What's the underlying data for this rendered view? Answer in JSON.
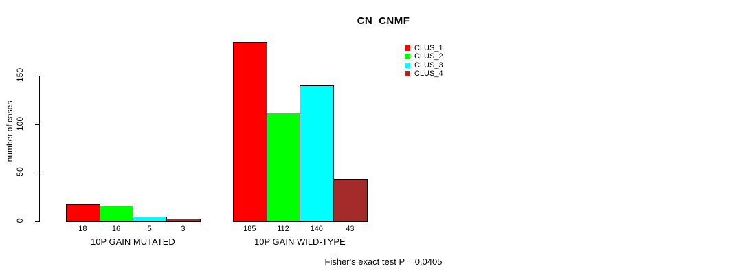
{
  "title": "CN_CNMF",
  "ylabel": "number of cases",
  "footer": "Fisher's exact test P = 0.0405",
  "legend": [
    {
      "label": "CLUS_1",
      "color": "#FF0000"
    },
    {
      "label": "CLUS_2",
      "color": "#00FF00"
    },
    {
      "label": "CLUS_3",
      "color": "#00FFFF"
    },
    {
      "label": "CLUS_4",
      "color": "#A52A2A"
    }
  ],
  "chart_data": {
    "type": "bar",
    "title": "CN_CNMF",
    "ylabel": "number of cases",
    "xlabel": "",
    "categories": [
      "10P GAIN MUTATED",
      "10P GAIN WILD-TYPE"
    ],
    "series": [
      {
        "name": "CLUS_1",
        "color": "#FF0000",
        "values": [
          18,
          185
        ]
      },
      {
        "name": "CLUS_2",
        "color": "#00FF00",
        "values": [
          16,
          112
        ]
      },
      {
        "name": "CLUS_3",
        "color": "#00FFFF",
        "values": [
          5,
          140
        ]
      },
      {
        "name": "CLUS_4",
        "color": "#A52A2A",
        "values": [
          3,
          43
        ]
      }
    ],
    "groups": [
      {
        "label": "10P GAIN MUTATED",
        "values": [
          18,
          16,
          5,
          3
        ]
      },
      {
        "label": "10P GAIN WILD-TYPE",
        "values": [
          185,
          112,
          140,
          43
        ]
      }
    ],
    "bar_value_labels": [
      [
        "18",
        "16",
        "5",
        "3"
      ],
      [
        "185",
        "112",
        "140",
        "43"
      ]
    ],
    "yticks": [
      0,
      50,
      100,
      150
    ],
    "ylim": [
      0,
      185
    ],
    "grid": false,
    "legend_position": "top-right",
    "annotation": "Fisher's exact test P = 0.0405"
  }
}
